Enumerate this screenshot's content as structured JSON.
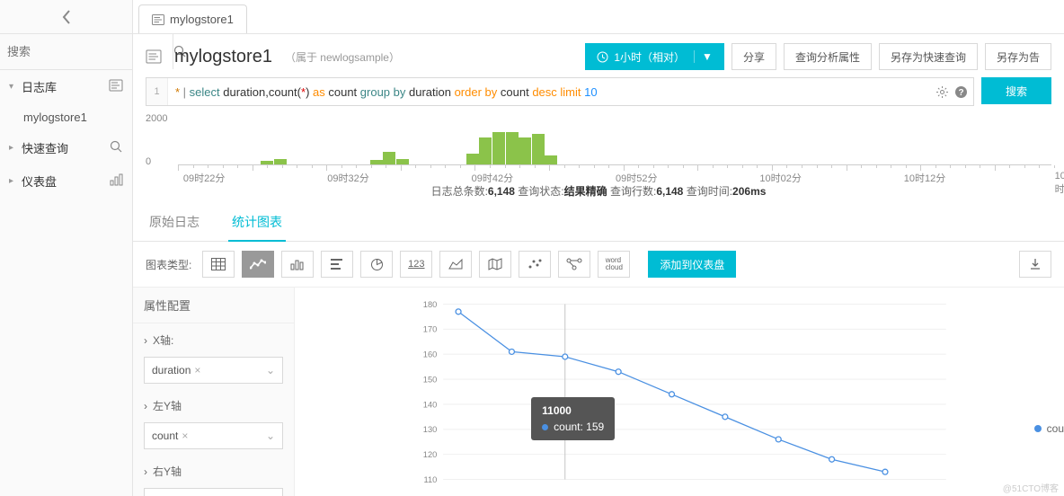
{
  "sidebar": {
    "search_placeholder": "搜索",
    "items": [
      {
        "label": "日志库",
        "icon": "log-icon"
      },
      {
        "label": "快速查询",
        "icon": "quick-query-icon"
      },
      {
        "label": "仪表盘",
        "icon": "dashboard-icon"
      }
    ],
    "sub_item": "mylogstore1"
  },
  "tab": {
    "title": "mylogstore1"
  },
  "header": {
    "title": "mylogstore1",
    "subtitle": "（属于 newlogsample）",
    "time_btn": "1小时（相对）",
    "share": "分享",
    "query_attr": "查询分析属性",
    "save_quick": "另存为快速查询",
    "save_alert": "另存为告"
  },
  "query": {
    "line_no": "1",
    "tokens": {
      "star": "* ",
      "pipe": "| ",
      "select": "select ",
      "ident1": "duration,count",
      "paren_open": "(",
      "star2": "*",
      "paren_close": ")  ",
      "as": "as ",
      "ident2": "count ",
      "group": "group by ",
      "ident3": "duration ",
      "order": "order by ",
      "ident4": "count ",
      "desc": "desc limit ",
      "num": "10"
    },
    "search_btn": "搜索"
  },
  "histogram": {
    "y_max": "2000",
    "y_min": "0",
    "labels": [
      "09时22分",
      "09时32分",
      "09时42分",
      "09时52分",
      "10时02分",
      "10时12分",
      "10时"
    ],
    "bars": [
      {
        "left_pct": 9.5,
        "h": 4
      },
      {
        "left_pct": 11,
        "h": 6
      },
      {
        "left_pct": 22,
        "h": 5
      },
      {
        "left_pct": 23.5,
        "h": 14
      },
      {
        "left_pct": 25,
        "h": 6
      },
      {
        "left_pct": 33,
        "h": 12
      },
      {
        "left_pct": 34.5,
        "h": 30
      },
      {
        "left_pct": 36,
        "h": 36
      },
      {
        "left_pct": 37.5,
        "h": 36
      },
      {
        "left_pct": 39,
        "h": 30
      },
      {
        "left_pct": 40.5,
        "h": 34
      },
      {
        "left_pct": 42,
        "h": 10
      }
    ],
    "label_positions_pct": [
      3,
      19.5,
      36,
      52.5,
      69,
      85.5,
      101
    ]
  },
  "stats": {
    "total_label": "日志总条数:",
    "total_val": "6,148",
    "status_label": " 查询状态:",
    "status_val": "结果精确",
    "rows_label": " 查询行数:",
    "rows_val": "6,148",
    "time_label": " 查询时间:",
    "time_val": "206ms"
  },
  "subtabs": {
    "raw": "原始日志",
    "chart": "统计图表"
  },
  "toolbar": {
    "label": "图表类型:",
    "add_dashboard": "添加到仪表盘"
  },
  "config": {
    "title": "属性配置",
    "x_axis": "X轴:",
    "x_value": "duration",
    "left_y": "左Y轴",
    "left_y_value": "count",
    "right_y": "右Y轴"
  },
  "line_chart": {
    "type": "line",
    "y_ticks": [
      180,
      170,
      160,
      150,
      140,
      130,
      120,
      110
    ],
    "ylim": [
      110,
      180
    ],
    "series_color": "#4a90e2",
    "grid_color": "#eeeeee",
    "axis_color": "#cccccc",
    "marker_radius": 3.5,
    "line_width": 1.5,
    "background": "#ffffff",
    "label_fontsize": 11,
    "label_color": "#888888",
    "points": [
      {
        "x": 60,
        "y": 177
      },
      {
        "x": 130,
        "y": 161
      },
      {
        "x": 200,
        "y": 159
      },
      {
        "x": 270,
        "y": 153
      },
      {
        "x": 340,
        "y": 144
      },
      {
        "x": 410,
        "y": 135
      },
      {
        "x": 480,
        "y": 126
      },
      {
        "x": 550,
        "y": 118
      },
      {
        "x": 620,
        "y": 113
      }
    ],
    "hover_index": 2,
    "legend_label": "count"
  },
  "tooltip": {
    "title": "11000",
    "series": "count: 159"
  },
  "watermark": "@51CTO博客"
}
